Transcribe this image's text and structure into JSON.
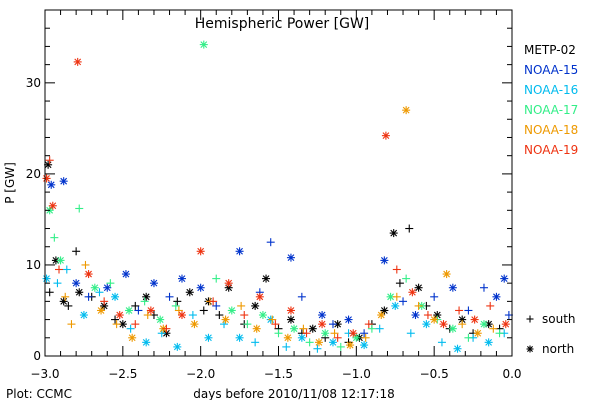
{
  "chart_data": {
    "type": "scatter",
    "title": "Hemispheric Power [GW]",
    "xlabel": "days before 2010/11/08 12:17:18",
    "ylabel": "P [GW]",
    "xlim": [
      -3.0,
      0.0
    ],
    "ylim": [
      0,
      38
    ],
    "xticks": [
      -3.0,
      -2.5,
      -2.0,
      -1.5,
      -1.0,
      -0.5,
      0.0
    ],
    "xtick_labels": [
      "−3.0",
      "−2.5",
      "−2.0",
      "−1.5",
      "−1.0",
      "−0.5",
      "0.0"
    ],
    "yticks": [
      0,
      10,
      20,
      30
    ],
    "ytick_labels": [
      "0",
      "10",
      "20",
      "30"
    ],
    "grid": false,
    "legend_placement": "right",
    "marker_legend": [
      {
        "symbol": "+",
        "label": "south"
      },
      {
        "symbol": "*",
        "label": "north"
      }
    ],
    "series": [
      {
        "name": "METP-02",
        "color": "#000000",
        "points": [
          [
            -2.98,
            21.0,
            "*"
          ],
          [
            -2.93,
            10.5,
            "*"
          ],
          [
            -2.97,
            7.0,
            "+"
          ],
          [
            -2.88,
            6.0,
            "*"
          ],
          [
            -2.85,
            5.5,
            "+"
          ],
          [
            -2.8,
            11.5,
            "+"
          ],
          [
            -2.78,
            7.0,
            "*"
          ],
          [
            -2.7,
            6.5,
            "+"
          ],
          [
            -2.62,
            5.5,
            "*"
          ],
          [
            -2.55,
            4.0,
            "+"
          ],
          [
            -2.5,
            3.5,
            "*"
          ],
          [
            -2.42,
            5.5,
            "+"
          ],
          [
            -2.35,
            6.5,
            "*"
          ],
          [
            -2.3,
            4.5,
            "+"
          ],
          [
            -2.22,
            2.5,
            "*"
          ],
          [
            -2.15,
            6.0,
            "+"
          ],
          [
            -2.07,
            7.0,
            "*"
          ],
          [
            -1.98,
            5.0,
            "+"
          ],
          [
            -1.95,
            6.0,
            "*"
          ],
          [
            -1.88,
            4.5,
            "+"
          ],
          [
            -1.82,
            7.5,
            "*"
          ],
          [
            -1.72,
            3.5,
            "+"
          ],
          [
            -1.65,
            5.5,
            "*"
          ],
          [
            -1.58,
            8.5,
            "*"
          ],
          [
            -1.5,
            3.0,
            "+"
          ],
          [
            -1.42,
            4.0,
            "*"
          ],
          [
            -1.35,
            2.5,
            "+"
          ],
          [
            -1.28,
            3.0,
            "*"
          ],
          [
            -1.2,
            2.0,
            "+"
          ],
          [
            -1.12,
            3.5,
            "*"
          ],
          [
            -1.05,
            1.5,
            "+"
          ],
          [
            -0.98,
            2.0,
            "*"
          ],
          [
            -0.9,
            3.5,
            "+"
          ],
          [
            -0.82,
            5.0,
            "*"
          ],
          [
            -0.76,
            13.5,
            "*"
          ],
          [
            -0.72,
            8.0,
            "+"
          ],
          [
            -0.66,
            14.0,
            "+"
          ],
          [
            -0.6,
            7.5,
            "*"
          ],
          [
            -0.55,
            5.5,
            "+"
          ],
          [
            -0.48,
            4.5,
            "*"
          ],
          [
            -0.4,
            3.0,
            "+"
          ],
          [
            -0.32,
            4.0,
            "*"
          ],
          [
            -0.25,
            2.5,
            "+"
          ],
          [
            -0.15,
            3.5,
            "*"
          ],
          [
            -0.08,
            3.0,
            "+"
          ]
        ]
      },
      {
        "name": "NOAA-15",
        "color": "#0033cc",
        "points": [
          [
            -2.96,
            18.8,
            "*"
          ],
          [
            -2.88,
            19.2,
            "*"
          ],
          [
            -2.8,
            8.0,
            "*"
          ],
          [
            -2.72,
            6.5,
            "+"
          ],
          [
            -2.6,
            7.5,
            "*"
          ],
          [
            -2.48,
            9.0,
            "*"
          ],
          [
            -2.4,
            5.0,
            "+"
          ],
          [
            -2.3,
            8.0,
            "*"
          ],
          [
            -2.2,
            6.5,
            "+"
          ],
          [
            -2.12,
            8.5,
            "*"
          ],
          [
            -2.0,
            7.5,
            "*"
          ],
          [
            -1.9,
            5.5,
            "+"
          ],
          [
            -1.75,
            11.5,
            "*"
          ],
          [
            -1.62,
            7.0,
            "+"
          ],
          [
            -1.55,
            12.5,
            "+"
          ],
          [
            -1.42,
            10.8,
            "*"
          ],
          [
            -1.35,
            6.5,
            "+"
          ],
          [
            -1.22,
            4.5,
            "*"
          ],
          [
            -1.15,
            3.5,
            "+"
          ],
          [
            -1.05,
            4.0,
            "*"
          ],
          [
            -0.95,
            2.5,
            "+"
          ],
          [
            -0.82,
            10.5,
            "*"
          ],
          [
            -0.7,
            6.0,
            "+"
          ],
          [
            -0.62,
            4.5,
            "*"
          ],
          [
            -0.5,
            6.5,
            "+"
          ],
          [
            -0.38,
            7.5,
            "*"
          ],
          [
            -0.28,
            5.0,
            "+"
          ],
          [
            -0.18,
            7.5,
            "+"
          ],
          [
            -0.1,
            6.5,
            "*"
          ],
          [
            -0.05,
            8.5,
            "*"
          ],
          [
            -0.02,
            4.5,
            "+"
          ]
        ]
      },
      {
        "name": "NOAA-16",
        "color": "#00bbee",
        "points": [
          [
            -2.99,
            8.5,
            "*"
          ],
          [
            -2.92,
            8.0,
            "+"
          ],
          [
            -2.86,
            9.5,
            "+"
          ],
          [
            -2.75,
            4.5,
            "*"
          ],
          [
            -2.65,
            7.0,
            "+"
          ],
          [
            -2.55,
            6.5,
            "*"
          ],
          [
            -2.45,
            3.0,
            "+"
          ],
          [
            -2.35,
            1.5,
            "*"
          ],
          [
            -2.25,
            2.5,
            "+"
          ],
          [
            -2.15,
            1.0,
            "*"
          ],
          [
            -2.05,
            4.5,
            "+"
          ],
          [
            -1.95,
            2.0,
            "*"
          ],
          [
            -1.85,
            3.5,
            "+"
          ],
          [
            -1.75,
            2.0,
            "*"
          ],
          [
            -1.65,
            1.5,
            "+"
          ],
          [
            -1.55,
            4.0,
            "*"
          ],
          [
            -1.45,
            1.0,
            "+"
          ],
          [
            -1.35,
            2.0,
            "*"
          ],
          [
            -1.25,
            0.8,
            "+"
          ],
          [
            -1.15,
            1.5,
            "*"
          ],
          [
            -1.05,
            2.5,
            "+"
          ],
          [
            -0.95,
            1.2,
            "*"
          ],
          [
            -0.85,
            3.0,
            "+"
          ],
          [
            -0.75,
            5.5,
            "*"
          ],
          [
            -0.65,
            2.5,
            "+"
          ],
          [
            -0.55,
            3.5,
            "*"
          ],
          [
            -0.45,
            1.5,
            "+"
          ],
          [
            -0.35,
            0.8,
            "*"
          ],
          [
            -0.25,
            2.0,
            "+"
          ],
          [
            -0.15,
            1.5,
            "*"
          ],
          [
            -0.05,
            2.5,
            "+"
          ]
        ]
      },
      {
        "name": "NOAA-17",
        "color": "#33ee88",
        "points": [
          [
            -2.97,
            16.0,
            "*"
          ],
          [
            -2.94,
            13.0,
            "+"
          ],
          [
            -2.9,
            10.5,
            "*"
          ],
          [
            -2.78,
            16.2,
            "+"
          ],
          [
            -2.68,
            7.5,
            "*"
          ],
          [
            -2.58,
            8.0,
            "+"
          ],
          [
            -2.46,
            5.0,
            "*"
          ],
          [
            -2.36,
            6.0,
            "+"
          ],
          [
            -2.26,
            4.0,
            "*"
          ],
          [
            -2.16,
            5.5,
            "+"
          ],
          [
            -1.98,
            34.2,
            "*"
          ],
          [
            -1.9,
            8.5,
            "+"
          ],
          [
            -1.8,
            5.0,
            "*"
          ],
          [
            -1.7,
            3.5,
            "+"
          ],
          [
            -1.6,
            4.5,
            "*"
          ],
          [
            -1.5,
            2.5,
            "+"
          ],
          [
            -1.4,
            3.0,
            "*"
          ],
          [
            -1.3,
            1.5,
            "+"
          ],
          [
            -1.2,
            2.5,
            "*"
          ],
          [
            -1.1,
            1.0,
            "+"
          ],
          [
            -1.0,
            2.0,
            "*"
          ],
          [
            -0.9,
            3.0,
            "+"
          ],
          [
            -0.78,
            6.5,
            "*"
          ],
          [
            -0.68,
            8.5,
            "+"
          ],
          [
            -0.58,
            5.5,
            "*"
          ],
          [
            -0.48,
            4.0,
            "+"
          ],
          [
            -0.38,
            3.0,
            "*"
          ],
          [
            -0.28,
            2.0,
            "+"
          ],
          [
            -0.18,
            3.5,
            "*"
          ],
          [
            -0.08,
            2.5,
            "+"
          ]
        ]
      },
      {
        "name": "NOAA-18",
        "color": "#ee9900",
        "points": [
          [
            -2.99,
            19.5,
            "+"
          ],
          [
            -2.87,
            6.5,
            "+"
          ],
          [
            -2.83,
            3.5,
            "+"
          ],
          [
            -2.74,
            10.0,
            "+"
          ],
          [
            -2.64,
            5.0,
            "*"
          ],
          [
            -2.54,
            3.5,
            "+"
          ],
          [
            -2.44,
            2.0,
            "*"
          ],
          [
            -2.34,
            4.5,
            "+"
          ],
          [
            -2.24,
            3.0,
            "*"
          ],
          [
            -2.14,
            5.0,
            "+"
          ],
          [
            -2.04,
            3.5,
            "*"
          ],
          [
            -1.94,
            6.0,
            "+"
          ],
          [
            -1.84,
            4.0,
            "*"
          ],
          [
            -1.74,
            5.5,
            "+"
          ],
          [
            -1.64,
            3.0,
            "*"
          ],
          [
            -1.54,
            4.0,
            "+"
          ],
          [
            -1.44,
            2.0,
            "*"
          ],
          [
            -1.34,
            3.0,
            "+"
          ],
          [
            -1.24,
            1.5,
            "*"
          ],
          [
            -1.14,
            2.5,
            "+"
          ],
          [
            -1.04,
            1.2,
            "*"
          ],
          [
            -0.94,
            2.0,
            "+"
          ],
          [
            -0.84,
            4.5,
            "*"
          ],
          [
            -0.74,
            6.5,
            "+"
          ],
          [
            -0.68,
            27.0,
            "*"
          ],
          [
            -0.6,
            5.5,
            "+"
          ],
          [
            -0.5,
            4.0,
            "*"
          ],
          [
            -0.42,
            9.0,
            "*"
          ],
          [
            -0.32,
            3.5,
            "+"
          ],
          [
            -0.22,
            2.5,
            "*"
          ],
          [
            -0.12,
            3.0,
            "+"
          ]
        ]
      },
      {
        "name": "NOAA-19",
        "color": "#ee3311",
        "points": [
          [
            -2.99,
            19.5,
            "*"
          ],
          [
            -2.97,
            21.5,
            "+"
          ],
          [
            -2.95,
            16.5,
            "*"
          ],
          [
            -2.91,
            9.5,
            "+"
          ],
          [
            -2.79,
            32.3,
            "*"
          ],
          [
            -2.72,
            9.0,
            "*"
          ],
          [
            -2.62,
            6.0,
            "+"
          ],
          [
            -2.52,
            4.5,
            "*"
          ],
          [
            -2.42,
            3.5,
            "+"
          ],
          [
            -2.32,
            5.0,
            "*"
          ],
          [
            -2.22,
            3.0,
            "+"
          ],
          [
            -2.12,
            4.5,
            "*"
          ],
          [
            -2.0,
            11.5,
            "*"
          ],
          [
            -1.92,
            6.0,
            "+"
          ],
          [
            -1.82,
            8.0,
            "*"
          ],
          [
            -1.72,
            4.5,
            "+"
          ],
          [
            -1.62,
            6.5,
            "*"
          ],
          [
            -1.52,
            3.5,
            "+"
          ],
          [
            -1.42,
            5.0,
            "*"
          ],
          [
            -1.32,
            2.5,
            "+"
          ],
          [
            -1.22,
            3.5,
            "*"
          ],
          [
            -1.12,
            2.0,
            "+"
          ],
          [
            -1.02,
            2.5,
            "*"
          ],
          [
            -0.92,
            3.5,
            "+"
          ],
          [
            -0.81,
            24.2,
            "*"
          ],
          [
            -0.74,
            9.5,
            "+"
          ],
          [
            -0.64,
            7.0,
            "*"
          ],
          [
            -0.54,
            4.5,
            "+"
          ],
          [
            -0.44,
            3.5,
            "*"
          ],
          [
            -0.34,
            5.0,
            "+"
          ],
          [
            -0.24,
            4.0,
            "*"
          ],
          [
            -0.14,
            5.5,
            "+"
          ],
          [
            -0.04,
            3.5,
            "*"
          ]
        ]
      }
    ]
  },
  "footer": {
    "credit": "Plot: CCMC"
  }
}
